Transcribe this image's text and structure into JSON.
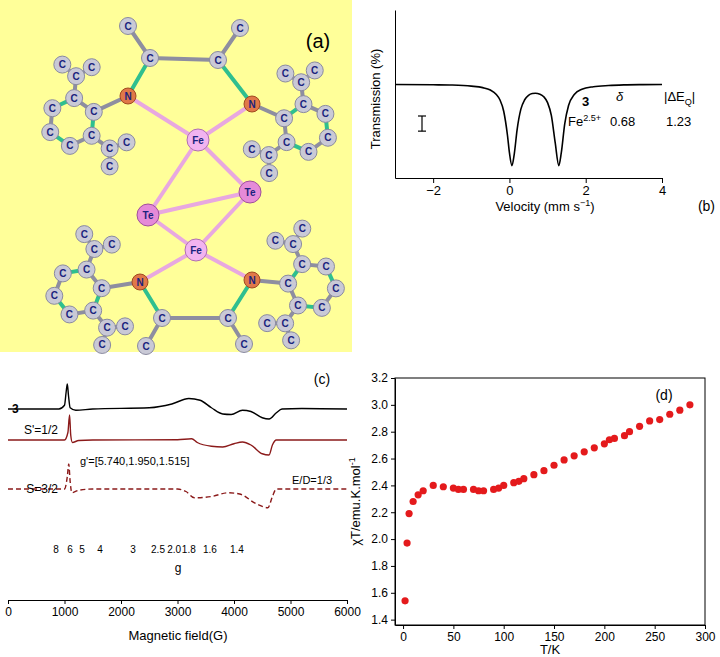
{
  "molecule": {
    "panel_label": "(a)",
    "atoms": [
      "Fe",
      "Fe",
      "Te",
      "Te",
      "N",
      "N",
      "C",
      "C",
      "C",
      "C",
      "C",
      "C",
      "C",
      "C",
      "C",
      "C",
      "C",
      "C",
      "C",
      "C",
      "C",
      "C",
      "C",
      "C",
      "C",
      "C",
      "C",
      "C",
      "C",
      "C",
      "C",
      "C",
      "C",
      "C",
      "N",
      "N",
      "C",
      "C",
      "C",
      "C",
      "C",
      "C",
      "C",
      "C",
      "C",
      "C",
      "C",
      "C",
      "C",
      "C",
      "C",
      "C",
      "C",
      "C",
      "C",
      "C",
      "C",
      "C",
      "C",
      "C",
      "C",
      "C",
      "C",
      "C"
    ]
  },
  "chart_data": [
    {
      "type": "line",
      "panel_label": "(b)",
      "xlabel": "Velocity (mm s−1)",
      "ylabel": "Transmission (%)",
      "x": [
        -3,
        -2,
        -1.5,
        -1,
        -0.7,
        -0.5,
        -0.35,
        -0.25,
        -0.15,
        -0.05,
        0,
        0.065,
        0.13,
        0.2,
        0.3,
        0.4,
        0.5,
        0.6,
        0.68,
        0.8,
        0.9,
        1,
        1.1,
        1.2,
        1.295,
        1.36,
        1.45,
        1.55,
        1.7,
        1.9,
        2.2,
        2.6,
        3,
        3.5,
        4
      ],
      "values": [
        99.98,
        99.96,
        99.94,
        99.87,
        99.77,
        99.61,
        99.34,
        98.97,
        98.21,
        96.59,
        95.47,
        94.62,
        95.45,
        96.97,
        98.35,
        98.97,
        99.26,
        99.38,
        99.4,
        99.34,
        99.17,
        98.78,
        97.92,
        96.13,
        94.62,
        95.47,
        97.38,
        98.59,
        99.32,
        99.66,
        99.83,
        99.91,
        99.95,
        99.97,
        99.98
      ],
      "color": "#000000",
      "xlim": [
        -3,
        4
      ],
      "xticks": [
        {
          "value": -2,
          "label": "−2"
        },
        0,
        2,
        4
      ],
      "ylim": [
        93.8,
        104.9
      ],
      "tick_labels": "x",
      "scale_bar": 1,
      "annotations": {
        "compound": "3",
        "ion": "Fe2.5+",
        "delta_label": "δ",
        "delta_eq_label": "|ΔEQ|",
        "delta": 0.68,
        "delta_eq": 1.23
      }
    },
    {
      "type": "line",
      "panel_label": "(c)",
      "xlabel": "Magnetic field(G)",
      "x2label": "g",
      "xlim": [
        0,
        6000
      ],
      "xticks": [
        0,
        1000,
        2000,
        3000,
        4000,
        5000,
        6000
      ],
      "x2ticks": [
        {
          "value": 850,
          "label": "8"
        },
        {
          "value": 1097,
          "label": "6"
        },
        {
          "value": 1310,
          "label": "5"
        },
        {
          "value": 1628,
          "label": "4"
        },
        {
          "value": 2212,
          "label": "3"
        },
        {
          "value": 2655,
          "label": "2.5"
        },
        {
          "value": 2940,
          "label": "2.0"
        },
        {
          "value": 3200,
          "label": "1.8"
        },
        {
          "value": 3575,
          "label": "1.6"
        },
        {
          "value": 4053,
          "label": "1.4"
        }
      ],
      "ylim": [
        -1.2,
        1.2
      ],
      "tick_labels": "x",
      "series": [
        {
          "label": "3",
          "color": "#000000",
          "line_style": "solid",
          "x": [
            0,
            900,
            1000,
            1030,
            1050,
            1070,
            1100,
            1200,
            1500,
            2500,
            2900,
            3200,
            3400,
            3600,
            3800,
            3950,
            4150,
            4300,
            4500,
            4620,
            4750,
            4850,
            5200,
            6000
          ],
          "values": [
            0,
            0,
            0.15,
            0.7,
            1,
            0.55,
            0.05,
            -0.05,
            0,
            0.05,
            0.2,
            0.42,
            0.35,
            0.05,
            -0.2,
            -0.22,
            -0.05,
            -0.1,
            -0.35,
            -0.4,
            -0.15,
            0,
            0.02,
            0
          ]
        },
        {
          "label": "S'=1/2",
          "annotation": "g'=[5.740,1.950,1.515]",
          "color": "#8b1a1a",
          "line_style": "solid",
          "x": [
            0,
            1000,
            1060,
            1090,
            1110,
            1140,
            1250,
            1500,
            3000,
            3250,
            3350,
            3600,
            3800,
            4000,
            4150,
            4300,
            4500,
            4620,
            4680,
            4750,
            6000
          ],
          "values": [
            0,
            0,
            0.3,
            1,
            0.2,
            -0.1,
            -0.02,
            0,
            0.01,
            0.05,
            -0.1,
            -0.25,
            -0.28,
            -0.15,
            -0.08,
            -0.2,
            -0.55,
            -0.6,
            -0.2,
            0,
            0
          ]
        },
        {
          "label": "S=3/2",
          "annotation": "E/D=1/3",
          "color": "#8b1a1a",
          "line_style": "dashed",
          "x": [
            0,
            1000,
            1050,
            1075,
            1100,
            1130,
            1250,
            1500,
            3000,
            3150,
            3300,
            3600,
            3900,
            4100,
            4400,
            4600,
            4680,
            4750,
            6000
          ],
          "values": [
            0,
            0,
            0.5,
            1,
            0.3,
            -0.15,
            -0.05,
            0,
            0,
            -0.1,
            -0.35,
            -0.3,
            -0.15,
            -0.2,
            -0.6,
            -0.75,
            -0.3,
            0,
            0
          ]
        }
      ]
    },
    {
      "type": "scatter",
      "panel_label": "(d)",
      "xlabel": "T/K",
      "ylabel": "χT/emu.K.mol-1",
      "x": [
        2,
        4,
        6,
        10,
        15,
        20,
        30,
        40,
        50,
        55,
        60,
        70,
        75,
        80,
        90,
        95,
        100,
        110,
        115,
        120,
        130,
        140,
        150,
        160,
        170,
        180,
        190,
        200,
        205,
        210,
        220,
        225,
        235,
        245,
        255,
        265,
        275,
        285
      ],
      "values": [
        1.54,
        1.97,
        2.19,
        2.28,
        2.33,
        2.36,
        2.4,
        2.39,
        2.38,
        2.37,
        2.37,
        2.37,
        2.36,
        2.36,
        2.37,
        2.38,
        2.4,
        2.42,
        2.43,
        2.45,
        2.48,
        2.51,
        2.55,
        2.59,
        2.62,
        2.65,
        2.68,
        2.71,
        2.74,
        2.75,
        2.77,
        2.8,
        2.84,
        2.88,
        2.89,
        2.93,
        2.96,
        3.0
      ],
      "color": "#e41a1c",
      "marker": "circle",
      "xlim": [
        -8,
        300
      ],
      "xticks": [
        0,
        50,
        100,
        150,
        200,
        250,
        300
      ],
      "ylim": [
        1.36,
        3.2
      ],
      "yticks": [
        1.4,
        1.6,
        1.8,
        {
          "value": 2,
          "label": "2.0"
        },
        2.2,
        2.4,
        2.6,
        2.8,
        {
          "value": 3,
          "label": "3.0"
        },
        3.2
      ]
    }
  ]
}
